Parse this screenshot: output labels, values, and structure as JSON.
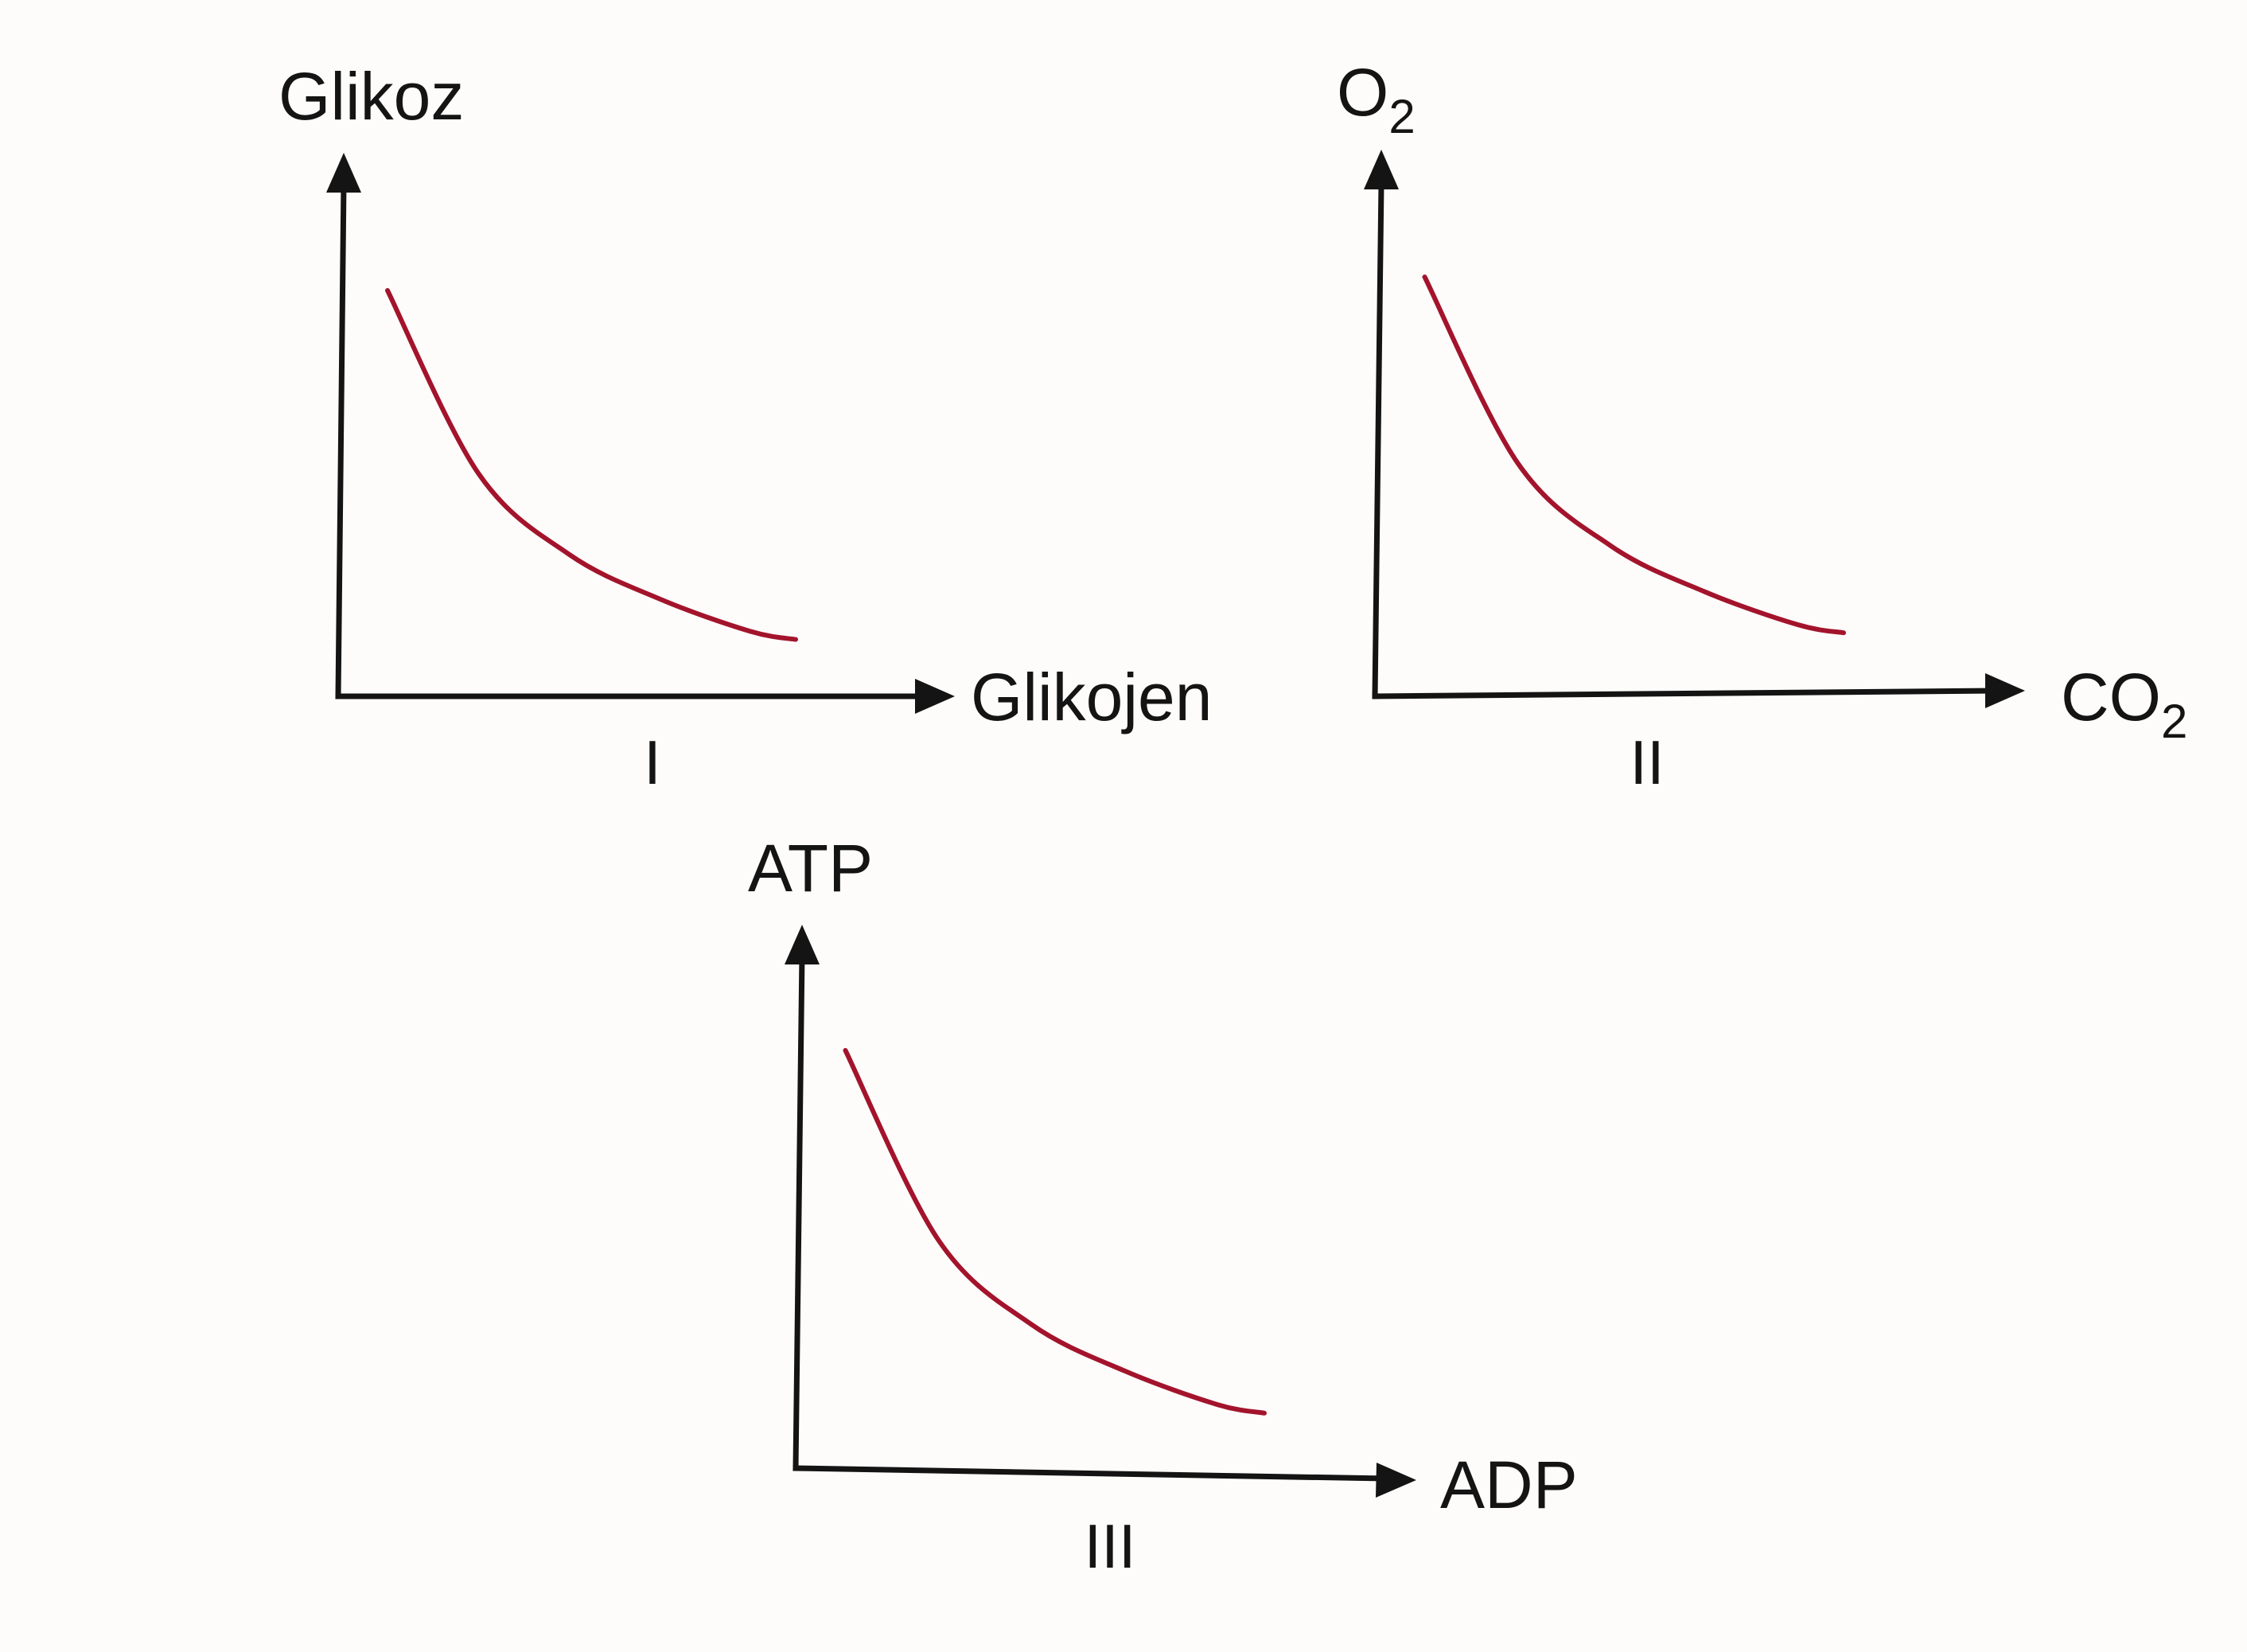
{
  "chart_data": [
    {
      "type": "line",
      "xlabel": "Glikojen",
      "ylabel": "Glikoz",
      "panel_label": "I",
      "series": [
        {
          "x": [
            0.1,
            0.3,
            0.5,
            0.7,
            0.9,
            1.0
          ],
          "y": [
            1.0,
            0.55,
            0.35,
            0.24,
            0.16,
            0.14
          ]
        }
      ],
      "color": "#a3142c",
      "ticks": false,
      "grid": false
    },
    {
      "type": "line",
      "xlabel": "CO",
      "xlabel_sub": "2",
      "ylabel": "O",
      "ylabel_sub": "2",
      "panel_label": "II",
      "series": [
        {
          "x": [
            0.1,
            0.3,
            0.5,
            0.7,
            0.9,
            1.0
          ],
          "y": [
            1.0,
            0.55,
            0.35,
            0.24,
            0.16,
            0.14
          ]
        }
      ],
      "color": "#a3142c",
      "ticks": false,
      "grid": false
    },
    {
      "type": "line",
      "xlabel": "ADP",
      "ylabel": "ATP",
      "panel_label": "III",
      "series": [
        {
          "x": [
            0.1,
            0.3,
            0.5,
            0.7,
            0.9,
            1.0
          ],
          "y": [
            1.0,
            0.55,
            0.35,
            0.24,
            0.16,
            0.14
          ]
        }
      ],
      "color": "#a3142c",
      "ticks": false,
      "grid": false
    }
  ]
}
